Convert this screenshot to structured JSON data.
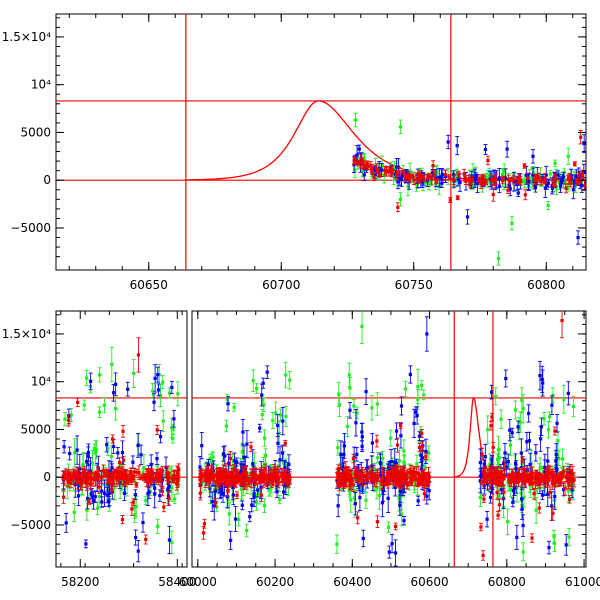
{
  "chart_data": [
    {
      "type": "scatter",
      "title": "",
      "xlabel": "",
      "ylabel": "",
      "xlim": [
        60615,
        60815
      ],
      "ylim": [
        -9400,
        17400
      ],
      "x_ticks": [
        {
          "value": 60650,
          "label": "60650"
        },
        {
          "value": 60700,
          "label": "60700"
        },
        {
          "value": 60750,
          "label": "60750"
        },
        {
          "value": 60800,
          "label": "60800"
        }
      ],
      "y_ticks": [
        {
          "value": -5000,
          "label": "−5000"
        },
        {
          "value": 0,
          "label": "0"
        },
        {
          "value": 5000,
          "label": "5000"
        },
        {
          "value": 10000,
          "label": "10⁴"
        },
        {
          "value": 15000,
          "label": "1.5×10⁴"
        }
      ],
      "vertical_lines": [
        60664,
        60764
      ],
      "horizontal_lines": [
        0,
        8300
      ],
      "model_curve": {
        "name": "Model light curve",
        "color": "#ff0000",
        "peak_x": 60714,
        "peak_y": 8300,
        "rise": 8,
        "decay": 12
      },
      "series": [
        {
          "name": "Green band",
          "color": "#22ee22"
        },
        {
          "name": "Blue band",
          "color": "#0000ee"
        },
        {
          "name": "Red band",
          "color": "#ee0000"
        }
      ],
      "sample_points": [
        {
          "series": "Green band",
          "x": 60728,
          "y": 6300
        },
        {
          "series": "Green band",
          "x": 60745,
          "y": 5600
        },
        {
          "series": "Green band",
          "x": 60745,
          "y": -2000
        },
        {
          "series": "Green band",
          "x": 60782,
          "y": -8200
        },
        {
          "series": "Blue band",
          "x": 60763,
          "y": 4000
        },
        {
          "series": "Blue band",
          "x": 60795,
          "y": 2500
        },
        {
          "series": "Blue band",
          "x": 60812,
          "y": -6000
        },
        {
          "series": "Red band",
          "x": 60730,
          "y": 2000
        },
        {
          "series": "Red band",
          "x": 60780,
          "y": -1500
        },
        {
          "series": "Red band",
          "x": 60813,
          "y": 4500
        }
      ]
    },
    {
      "type": "scatter",
      "title": "",
      "xlabel": "",
      "ylabel": "",
      "x_segments": [
        [
          58150,
          58420
        ],
        [
          59985,
          61005
        ]
      ],
      "ylim": [
        -9400,
        17400
      ],
      "x_ticks": [
        {
          "value": 58200,
          "label": "58200"
        },
        {
          "value": 58400,
          "label": "58400"
        },
        {
          "value": 60000,
          "label": "60000"
        },
        {
          "value": 60200,
          "label": "60200"
        },
        {
          "value": 60400,
          "label": "60400"
        },
        {
          "value": 60600,
          "label": "60600"
        },
        {
          "value": 60800,
          "label": "60800"
        },
        {
          "value": 61000,
          "label": "61000"
        }
      ],
      "y_ticks": [
        {
          "value": -5000,
          "label": "−5000"
        },
        {
          "value": 0,
          "label": "0"
        },
        {
          "value": 5000,
          "label": "5000"
        },
        {
          "value": 10000,
          "label": "10⁴"
        },
        {
          "value": 15000,
          "label": "1.5×10⁴"
        }
      ],
      "vertical_lines": [
        60664,
        60764
      ],
      "horizontal_lines": [
        0,
        8300
      ],
      "model_curve": {
        "name": "Model light curve",
        "color": "#ff0000",
        "peak_x": 60714,
        "peak_y": 8300,
        "rise": 8,
        "decay": 12
      },
      "observing_seasons": [
        [
          58165,
          58405
        ],
        [
          60005,
          60240
        ],
        [
          60360,
          60600
        ],
        [
          60730,
          60975
        ]
      ],
      "series": [
        {
          "name": "Green band",
          "color": "#22ee22"
        },
        {
          "name": "Blue band",
          "color": "#0000ee"
        },
        {
          "name": "Red band",
          "color": "#ee0000"
        }
      ],
      "sample_points": [
        {
          "series": "Red band",
          "x": 58320,
          "y": 12800
        },
        {
          "series": "Green band",
          "x": 58265,
          "y": 11800
        },
        {
          "series": "Blue band",
          "x": 60593,
          "y": 15000
        },
        {
          "series": "Green band",
          "x": 60425,
          "y": 15800
        },
        {
          "series": "Red band",
          "x": 60943,
          "y": 16400
        },
        {
          "series": "Green band",
          "x": 60570,
          "y": 9500
        }
      ]
    }
  ]
}
